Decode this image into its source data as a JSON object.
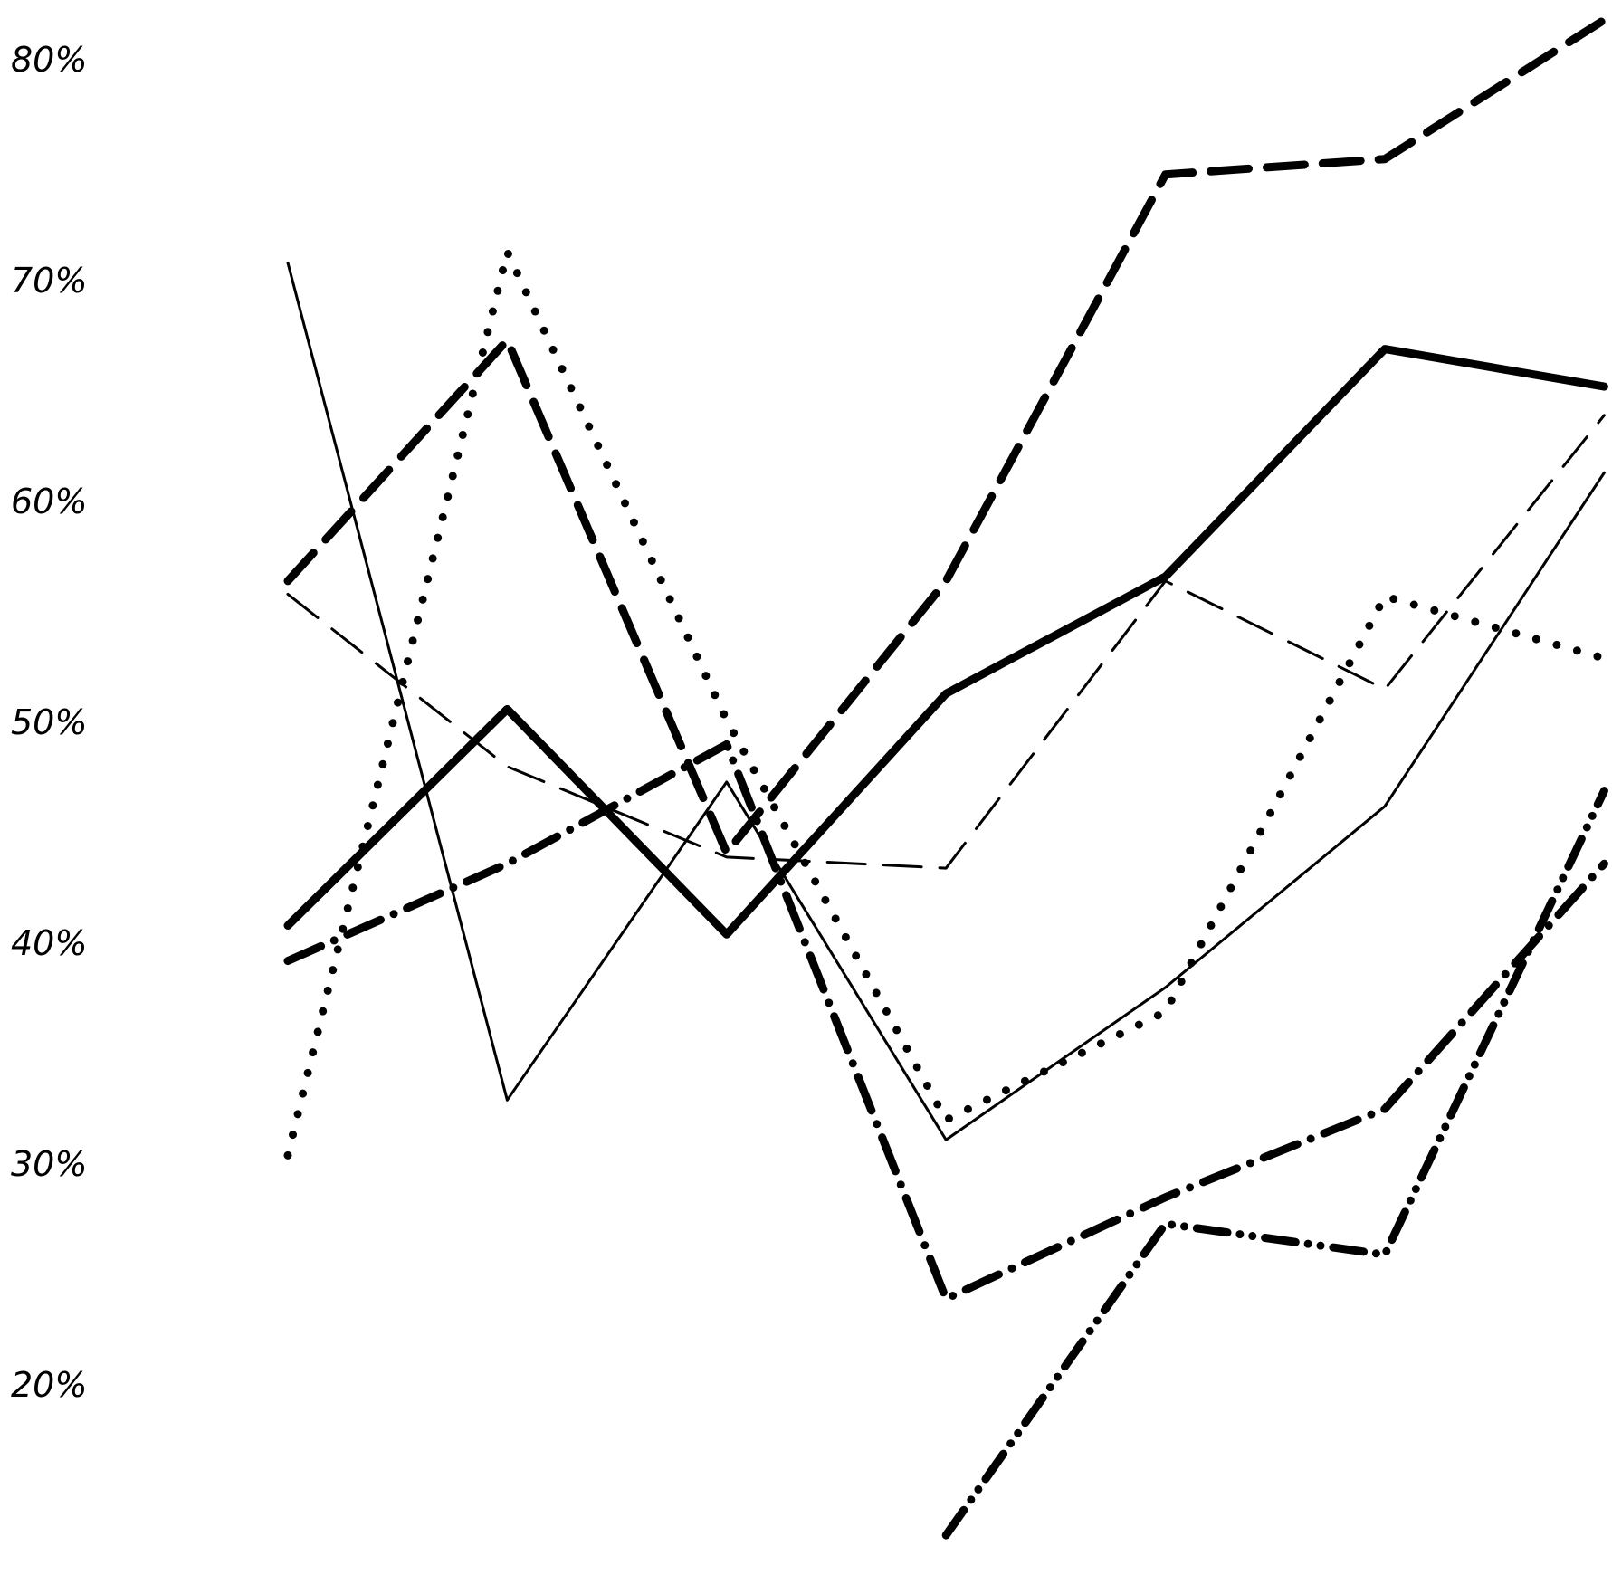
{
  "chart_data": {
    "type": "line",
    "categories": [
      null,
      null,
      null,
      null,
      null,
      null,
      null
    ],
    "ylim": [
      11.5,
      82.8
    ],
    "yticks": [
      {
        "value": 20,
        "label": "20%"
      },
      {
        "value": 30,
        "label": "30%"
      },
      {
        "value": 40,
        "label": "40%"
      },
      {
        "value": 50,
        "label": "50%"
      },
      {
        "value": 60,
        "label": "60%"
      },
      {
        "value": 70,
        "label": "70%"
      },
      {
        "value": 80,
        "label": "80%"
      }
    ],
    "grid": false,
    "series": [
      {
        "color": "#000000",
        "style": "dashed",
        "width": "heavy",
        "values": [
          56.5,
          67.4,
          44.2,
          56.5,
          74.9,
          75.6,
          81.9
        ]
      },
      {
        "color": "#000000",
        "style": "solid",
        "width": "heavy",
        "values": [
          40.9,
          50.7,
          40.5,
          51.4,
          56.7,
          67.0,
          65.3
        ]
      },
      {
        "color": "#000000",
        "style": "dashdot",
        "width": "heavy",
        "values": [
          39.3,
          43.7,
          49.1,
          24.0,
          28.6,
          32.6,
          43.7
        ]
      },
      {
        "color": "#000000",
        "style": "dotted",
        "width": "heavy",
        "values": [
          30.5,
          71.4,
          50.2,
          32.1,
          37.0,
          55.8,
          53.0
        ]
      },
      {
        "color": "#000000",
        "style": "solid",
        "width": "thin",
        "values": [
          70.9,
          33.0,
          47.4,
          31.2,
          38.1,
          46.3,
          61.4
        ]
      },
      {
        "color": "#000000",
        "style": "dashed",
        "width": "thin",
        "values": [
          55.9,
          48.1,
          44.0,
          43.5,
          56.5,
          51.6,
          64.0
        ]
      },
      {
        "color": "#000000",
        "style": "dashdotdot",
        "width": "heavy",
        "values": [
          null,
          null,
          null,
          13.3,
          27.4,
          26.0,
          47.0
        ]
      }
    ]
  }
}
